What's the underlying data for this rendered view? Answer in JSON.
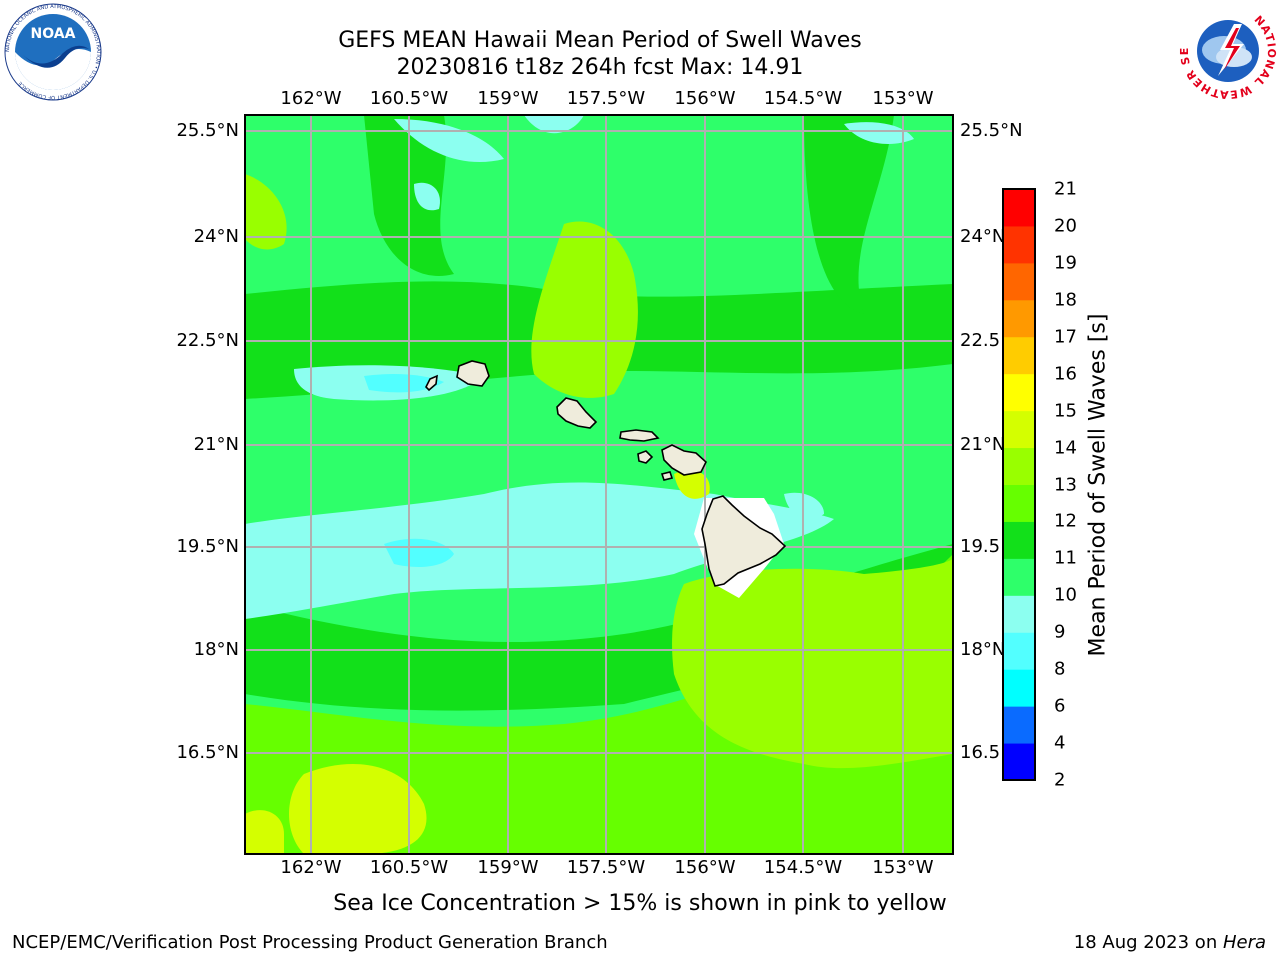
{
  "title": {
    "line1": "GEFS MEAN Hawaii Mean Period of Swell Waves",
    "line2": "20230816 t18z 264h fcst   Max: 14.91"
  },
  "map": {
    "lon_labels": [
      "162°W",
      "160.5°W",
      "159°W",
      "157.5°W",
      "156°W",
      "154.5°W",
      "153°W"
    ],
    "lat_labels": [
      "25.5°N",
      "24°N",
      "22.5°N",
      "21°N",
      "19.5°N",
      "18°N",
      "16.5°N"
    ],
    "right_lat_labels": [
      "25.5°N",
      "24°N",
      "22.5",
      "21°N",
      "19.5",
      "18°N",
      "16.5"
    ],
    "land_color": "#efecdc",
    "grid_color": "#b0b0b0"
  },
  "colorbar": {
    "label": "Mean Period of Swell Waves [s]",
    "ticks": [
      "2",
      "4",
      "6",
      "8",
      "9",
      "10",
      "11",
      "12",
      "13",
      "14",
      "15",
      "16",
      "17",
      "18",
      "19",
      "20",
      "21"
    ],
    "colors": [
      "#0000ff",
      "#0a6bff",
      "#00ffff",
      "#52ffff",
      "#8cfff0",
      "#2eff6a",
      "#12e01a",
      "#66ff00",
      "#99ff00",
      "#d4ff00",
      "#ffff00",
      "#ffcc00",
      "#ff9900",
      "#ff6600",
      "#ff3300",
      "#ff0000"
    ]
  },
  "footer": {
    "note": "Sea Ice Concentration > 15% is shown in pink to yellow",
    "left": "NCEP/EMC/Verification Post Processing Product Generation Branch",
    "right_date": "18 Aug 2023 on ",
    "right_host": "Hera"
  },
  "logos": {
    "noaa_text": "NOAA",
    "noaa_ring": "NATIONAL OCEANIC AND ATMOSPHERIC ADMINISTRATION • U.S. DEPARTMENT OF COMMERCE",
    "nws_ring": "NATIONAL WEATHER SERVICE"
  }
}
